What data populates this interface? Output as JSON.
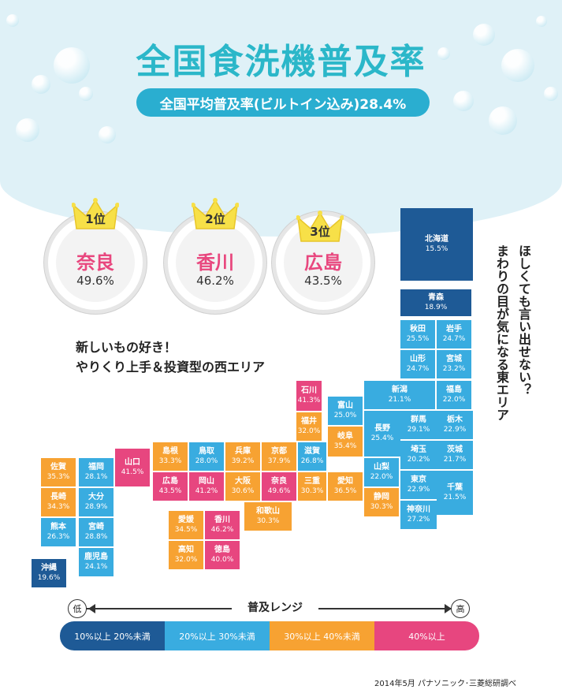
{
  "title": "全国食洗機普及率",
  "subtitle": "全国平均普及率(ビルトイン込み)28.4%",
  "rankings": [
    {
      "rank": "1位",
      "pref": "奈良",
      "value": "49.6%"
    },
    {
      "rank": "2位",
      "pref": "香川",
      "value": "46.2%"
    },
    {
      "rank": "3位",
      "pref": "広島",
      "value": "43.5%"
    }
  ],
  "west_caption_1": "新しいもの好き！",
  "west_caption_2": "やりくり上手＆投資型の西エリア",
  "east_caption_1": "ほしくても言い出せない？",
  "east_caption_2": "まわりの目が気になる東エリア",
  "range": {
    "title": "普及レンジ",
    "low": "低",
    "high": "高"
  },
  "legend": [
    {
      "label": "10%以上 20%未満",
      "color": "#1e5a96"
    },
    {
      "label": "20%以上 30%未満",
      "color": "#39ace0"
    },
    {
      "label": "30%以上 40%未満",
      "color": "#f7a232"
    },
    {
      "label": "40%以上",
      "color": "#e7467f"
    }
  ],
  "source": "2014年5月 パナソニック･三菱総研調べ",
  "chart_data": {
    "type": "table",
    "title": "全国食洗機普及率",
    "unit": "%",
    "prefectures": [
      {
        "name": "北海道",
        "value": 15.5
      },
      {
        "name": "青森",
        "value": 18.9
      },
      {
        "name": "秋田",
        "value": 25.5
      },
      {
        "name": "岩手",
        "value": 24.7
      },
      {
        "name": "山形",
        "value": 24.7
      },
      {
        "name": "宮城",
        "value": 23.2
      },
      {
        "name": "新潟",
        "value": 21.1
      },
      {
        "name": "福島",
        "value": 22.0
      },
      {
        "name": "石川",
        "value": 41.3
      },
      {
        "name": "富山",
        "value": 25.0
      },
      {
        "name": "福井",
        "value": 32.0
      },
      {
        "name": "長野",
        "value": 25.4
      },
      {
        "name": "群馬",
        "value": 29.1
      },
      {
        "name": "栃木",
        "value": 22.9
      },
      {
        "name": "岐阜",
        "value": 35.4
      },
      {
        "name": "埼玉",
        "value": 20.2
      },
      {
        "name": "茨城",
        "value": 21.7
      },
      {
        "name": "山梨",
        "value": 22.0
      },
      {
        "name": "東京",
        "value": 22.9
      },
      {
        "name": "千葉",
        "value": 21.5
      },
      {
        "name": "静岡",
        "value": 30.3
      },
      {
        "name": "神奈川",
        "value": 27.2
      },
      {
        "name": "島根",
        "value": 33.3
      },
      {
        "name": "鳥取",
        "value": 28.0
      },
      {
        "name": "兵庫",
        "value": 39.2
      },
      {
        "name": "京都",
        "value": 37.9
      },
      {
        "name": "滋賀",
        "value": 26.8
      },
      {
        "name": "広島",
        "value": 43.5
      },
      {
        "name": "岡山",
        "value": 41.2
      },
      {
        "name": "大阪",
        "value": 30.6
      },
      {
        "name": "奈良",
        "value": 49.6
      },
      {
        "name": "三重",
        "value": 30.3
      },
      {
        "name": "愛知",
        "value": 36.5
      },
      {
        "name": "和歌山",
        "value": 30.3
      },
      {
        "name": "山口",
        "value": 41.5
      },
      {
        "name": "愛媛",
        "value": 34.5
      },
      {
        "name": "香川",
        "value": 46.2
      },
      {
        "name": "高知",
        "value": 32.0
      },
      {
        "name": "徳島",
        "value": 40.0
      },
      {
        "name": "佐賀",
        "value": 35.3
      },
      {
        "name": "福岡",
        "value": 28.1
      },
      {
        "name": "長崎",
        "value": 34.3
      },
      {
        "name": "大分",
        "value": 28.9
      },
      {
        "name": "熊本",
        "value": 26.3
      },
      {
        "name": "宮崎",
        "value": 28.8
      },
      {
        "name": "鹿児島",
        "value": 24.1
      },
      {
        "name": "沖縄",
        "value": 19.6
      }
    ]
  }
}
